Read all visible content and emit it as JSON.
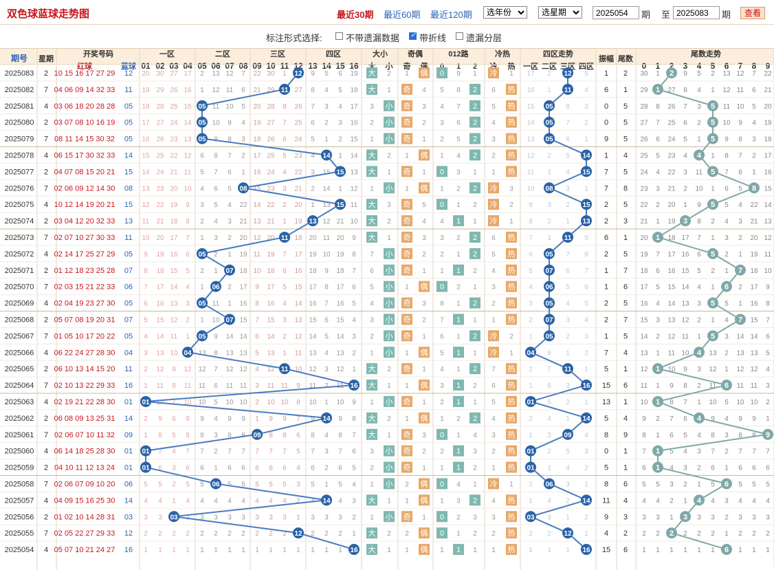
{
  "header": {
    "title": "双色球蓝球走势图",
    "ranges": [
      "最近30期",
      "最近60期",
      "最近120期"
    ],
    "year_select": "选年份",
    "period_select": "选星期",
    "from_label": "至",
    "period_unit": "期",
    "start": "2025054",
    "end": "2025083",
    "query": "查看"
  },
  "options": {
    "label": "标注形式选择:",
    "items": [
      {
        "text": "不带遗漏数据",
        "checked": false
      },
      {
        "text": "带折线",
        "checked": true
      },
      {
        "text": "遗漏分层",
        "checked": false
      }
    ]
  },
  "columns": {
    "period": "期号",
    "week": "星期",
    "draw": "开奖号码",
    "red": "红球",
    "blue": "蓝球",
    "zones": [
      "一区",
      "二区",
      "三区",
      "四区"
    ],
    "big_small": "大小",
    "big": "大",
    "small": "小",
    "odd_even": "奇偶",
    "odd": "奇",
    "even": "偶",
    "route": "012路",
    "hot_cold": "冷热",
    "cold": "冷",
    "hot": "热",
    "zone_trend": "四区走势",
    "amp": "振幅",
    "tail": "尾数",
    "tail_trend": "尾数走势"
  },
  "chart_data": {
    "type": "table",
    "rows": [
      {
        "p": "2025083",
        "w": "2",
        "r": "10 15 16 17 27 29",
        "b": 12,
        "amp": 1,
        "t": 2,
        "hc": "冷"
      },
      {
        "p": "2025082",
        "w": "7",
        "r": "04 06 09 14 32 33",
        "b": 11,
        "amp": 6,
        "t": 1,
        "hc": "热"
      },
      {
        "p": "2025081",
        "w": "4",
        "r": "03 06 18 20 28 28",
        "b": 5,
        "amp": 0,
        "t": 5,
        "hc": "热"
      },
      {
        "p": "2025080",
        "w": "2",
        "r": "03 07 08 10 16 19",
        "b": 5,
        "amp": 0,
        "t": 5,
        "hc": "热"
      },
      {
        "p": "2025079",
        "w": "7",
        "r": "08 11 14 15 30 32",
        "b": 5,
        "amp": 9,
        "t": 5,
        "hc": "热"
      },
      {
        "p": "2025078",
        "w": "4",
        "r": "06 15 17 30 32 33",
        "b": 14,
        "amp": 1,
        "t": 4,
        "hc": "热"
      },
      {
        "p": "2025077",
        "w": "2",
        "r": "04 07 08 15 20 21",
        "b": 15,
        "amp": 7,
        "t": 5,
        "hc": "热"
      },
      {
        "p": "2025076",
        "w": "7",
        "r": "02 06 09 12 14 30",
        "b": 8,
        "amp": 7,
        "t": 8,
        "hc": "冷"
      },
      {
        "p": "2025075",
        "w": "4",
        "r": "10 12 14 19 20 21",
        "b": 15,
        "amp": 2,
        "t": 5,
        "hc": "冷"
      },
      {
        "p": "2025074",
        "w": "2",
        "r": "03 04 12 20 32 33",
        "b": 13,
        "amp": 2,
        "t": 3,
        "hc": "冷"
      },
      {
        "p": "2025073",
        "w": "7",
        "r": "02 07 10 27 30 33",
        "b": 11,
        "amp": 6,
        "t": 1,
        "hc": "热"
      },
      {
        "p": "2025072",
        "w": "4",
        "r": "02 14 17 25 27 29",
        "b": 5,
        "amp": 2,
        "t": 5,
        "hc": "热"
      },
      {
        "p": "2025071",
        "w": "2",
        "r": "01 12 18 23 25 28",
        "b": 7,
        "amp": 1,
        "t": 7,
        "hc": "热"
      },
      {
        "p": "2025070",
        "w": "7",
        "r": "02 03 15 21 22 33",
        "b": 6,
        "amp": 1,
        "t": 6,
        "hc": "热"
      },
      {
        "p": "2025069",
        "w": "4",
        "r": "02 04 19 23 27 30",
        "b": 5,
        "amp": 2,
        "t": 5,
        "hc": "热"
      },
      {
        "p": "2025068",
        "w": "2",
        "r": "05 07 08 19 20 31",
        "b": 7,
        "amp": 2,
        "t": 7,
        "hc": "热"
      },
      {
        "p": "2025067",
        "w": "7",
        "r": "01 05 10 17 20 22",
        "b": 5,
        "amp": 1,
        "t": 5,
        "hc": "冷"
      },
      {
        "p": "2025066",
        "w": "4",
        "r": "06 22 24 27 28 30",
        "b": 4,
        "amp": 7,
        "t": 4,
        "hc": "冷"
      },
      {
        "p": "2025065",
        "w": "2",
        "r": "06 10 13 14 15 20",
        "b": 11,
        "amp": 5,
        "t": 1,
        "hc": "热"
      },
      {
        "p": "2025064",
        "w": "7",
        "r": "02 10 13 22 29 33",
        "b": 16,
        "amp": 15,
        "t": 6,
        "hc": "热"
      },
      {
        "p": "2025063",
        "w": "4",
        "r": "02 19 21 22 28 30",
        "b": 1,
        "amp": 13,
        "t": 1,
        "hc": "热"
      },
      {
        "p": "2025062",
        "w": "2",
        "r": "06 08 09 13 25 31",
        "b": 14,
        "amp": 5,
        "t": 4,
        "hc": "热"
      },
      {
        "p": "2025061",
        "w": "7",
        "r": "02 06 07 10 11 32",
        "b": 9,
        "amp": 8,
        "t": 9,
        "hc": "热"
      },
      {
        "p": "2025060",
        "w": "4",
        "r": "06 14 18 25 28 30",
        "b": 1,
        "amp": 0,
        "t": 1,
        "hc": "热"
      },
      {
        "p": "2025059",
        "w": "2",
        "r": "04 10 11 12 13 24",
        "b": 1,
        "amp": 5,
        "t": 1,
        "hc": "热"
      },
      {
        "p": "2025058",
        "w": "7",
        "r": "02 06 07 09 10 20",
        "b": 6,
        "amp": 8,
        "t": 6,
        "hc": "冷"
      },
      {
        "p": "2025057",
        "w": "4",
        "r": "04 09 15 16 25 30",
        "b": 14,
        "amp": 11,
        "t": 4,
        "hc": "热"
      },
      {
        "p": "2025056",
        "w": "2",
        "r": "01 02 10 14 28 31",
        "b": 3,
        "amp": 9,
        "t": 3,
        "hc": "热"
      },
      {
        "p": "2025055",
        "w": "7",
        "r": "02 05 22 27 29 33",
        "b": 12,
        "amp": 4,
        "t": 2,
        "hc": "热"
      },
      {
        "p": "2025054",
        "w": "4",
        "r": "05 07 10 21 24 27",
        "b": 16,
        "amp": 15,
        "t": 6,
        "hc": "热"
      }
    ]
  },
  "colors": {
    "red": "#c8161d",
    "blue": "#2c63b5",
    "ball": "#2962a8",
    "tail_ball": "#7fa8a8",
    "box_teal": "#7fb8b0",
    "box_orange": "#e8a868",
    "line": "#4a7bc0"
  }
}
